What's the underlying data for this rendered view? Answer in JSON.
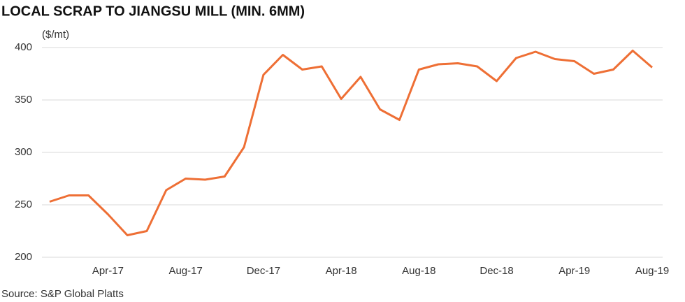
{
  "chart_data": {
    "type": "line",
    "title": "LOCAL SCRAP TO JIANGSU MILL (MIN. 6MM)",
    "y_label": "($/mt)",
    "source": "Source: S&P Global Platts",
    "categories": [
      null,
      null,
      null,
      "Apr-17",
      null,
      null,
      null,
      "Aug-17",
      null,
      null,
      null,
      "Dec-17",
      null,
      null,
      null,
      "Apr-18",
      null,
      null,
      null,
      "Aug-18",
      null,
      null,
      null,
      "Dec-18",
      null,
      null,
      null,
      "Apr-19",
      null,
      null,
      null,
      "Aug-19"
    ],
    "series": [
      {
        "name": "Local scrap",
        "color": "#ee6f35",
        "values": [
          253,
          259,
          259,
          241,
          221,
          225,
          264,
          275,
          274,
          277,
          305,
          374,
          393,
          379,
          382,
          351,
          372,
          341,
          331,
          379,
          384,
          385,
          382,
          368,
          390,
          396,
          389,
          387,
          375,
          379,
          397,
          381
        ]
      }
    ],
    "ylim": [
      200,
      400
    ],
    "yticks": [
      200,
      250,
      300,
      350,
      400
    ],
    "grid": true
  }
}
